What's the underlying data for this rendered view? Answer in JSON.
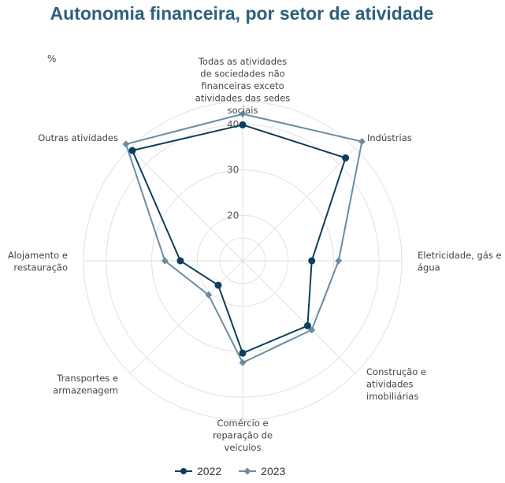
{
  "header": {
    "title": "Autonomia financeira, por setor de atividade",
    "unit": "%"
  },
  "legend": {
    "items": [
      "2022",
      "2023"
    ]
  },
  "colors": {
    "series_2022": "#0b3f5c",
    "series_2023": "#6a8da3",
    "grid": "#e2e2e2"
  },
  "chart_data": {
    "type": "radar",
    "title": "Autonomia financeira, por setor de atividade",
    "ylabel": "%",
    "rlim": [
      10,
      45
    ],
    "r_ticks": [
      20,
      30,
      40
    ],
    "categories": [
      "Todas as atividades de sociedades não financeiras exceto atividades das sedes sociais",
      "Indústrias",
      "Eletricidade, gás e água",
      "Construção e atividades imobiliárias",
      "Comércio e reparação de veículos",
      "Transportes e armazenagem",
      "Alojamento e restauração",
      "Outras atividades"
    ],
    "category_lines": [
      [
        "Todas as atividades",
        "de sociedades não",
        "financeiras exceto",
        "atividades das sedes",
        "sociais"
      ],
      [
        "Indústrias"
      ],
      [
        "Eletricidade, gás e",
        "água"
      ],
      [
        "Construção e",
        "atividades",
        "imobiliárias"
      ],
      [
        "Comércio e",
        "reparação de",
        "veículos"
      ],
      [
        "Transportes e",
        "armazenagem"
      ],
      [
        "Alojamento e",
        "restauração"
      ],
      [
        "Outras atividades"
      ]
    ],
    "series": [
      {
        "name": "2022",
        "values": [
          39.9,
          42.0,
          25.2,
          30.2,
          30.3,
          17.6,
          23.7,
          44.3
        ]
      },
      {
        "name": "2023",
        "values": [
          42.3,
          47.1,
          31.1,
          31.5,
          32.4,
          20.6,
          27.1,
          46.3
        ]
      }
    ],
    "grid": true,
    "legend_position": "bottom"
  }
}
